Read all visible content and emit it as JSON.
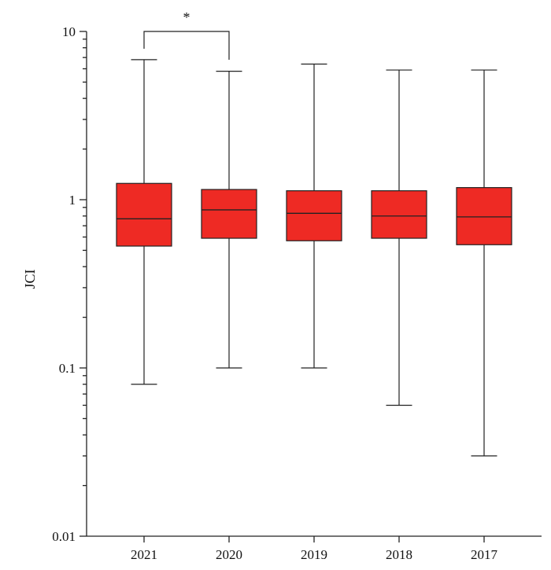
{
  "chart_data": {
    "type": "box",
    "ylabel": "JCI",
    "xlabel": "",
    "yscale": "log",
    "ylim": [
      0.01,
      10
    ],
    "y_ticks": [
      {
        "value": 0.01,
        "label": "0.01"
      },
      {
        "value": 0.1,
        "label": "0.1"
      },
      {
        "value": 1,
        "label": "1"
      },
      {
        "value": 10,
        "label": "10"
      }
    ],
    "categories": [
      "2021",
      "2020",
      "2019",
      "2018",
      "2017"
    ],
    "box_color": "#ee2a24",
    "boxes": [
      {
        "category": "2021",
        "min": 0.08,
        "q1": 0.53,
        "median": 0.77,
        "q3": 1.25,
        "max": 6.8
      },
      {
        "category": "2020",
        "min": 0.1,
        "q1": 0.59,
        "median": 0.87,
        "q3": 1.15,
        "max": 5.8
      },
      {
        "category": "2019",
        "min": 0.1,
        "q1": 0.57,
        "median": 0.83,
        "q3": 1.13,
        "max": 6.4
      },
      {
        "category": "2018",
        "min": 0.06,
        "q1": 0.59,
        "median": 0.8,
        "q3": 1.13,
        "max": 5.9
      },
      {
        "category": "2017",
        "min": 0.03,
        "q1": 0.54,
        "median": 0.79,
        "q3": 1.18,
        "max": 5.9
      }
    ],
    "annotations": [
      {
        "type": "significance",
        "from": "2021",
        "to": "2020",
        "label": "*"
      }
    ],
    "grid": false,
    "legend": "none"
  }
}
